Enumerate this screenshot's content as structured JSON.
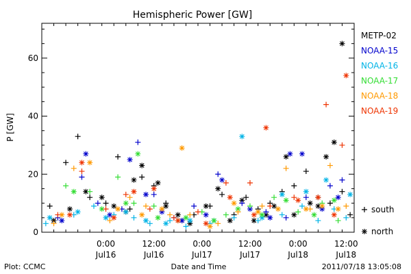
{
  "chart_data": {
    "type": "scatter",
    "title": "Hemispheric Power [GW]",
    "ylabel": "P [GW]",
    "xlabel": "Date and Time",
    "ylim": [
      0,
      72
    ],
    "yticks": [
      0,
      20,
      40,
      60
    ],
    "xlim": [
      "2011-07-15 08:00",
      "2011-07-18 14:00"
    ],
    "xticks": [
      {
        "top": "0:00",
        "bottom": "Jul16",
        "t": "2011-07-16 00:00"
      },
      {
        "top": "12:00",
        "bottom": "Jul16",
        "t": "2011-07-16 12:00"
      },
      {
        "top": "0:00",
        "bottom": "Jul17",
        "t": "2011-07-17 00:00"
      },
      {
        "top": "12:00",
        "bottom": "Jul17",
        "t": "2011-07-17 12:00"
      },
      {
        "top": "0:00",
        "bottom": "Jul18",
        "t": "2011-07-18 00:00"
      },
      {
        "top": "12:00",
        "bottom": "Jul18",
        "t": "2011-07-18 12:00"
      }
    ],
    "marker_key": [
      {
        "marker": "+",
        "label": "south"
      },
      {
        "marker": "*",
        "label": "north"
      }
    ],
    "footer_left": "Plot: CCMC",
    "footer_right": "2011/07/18 13:05:08",
    "series": [
      {
        "name": "METP-02",
        "color": "#000000",
        "south": [
          [
            "2011-07-15 10:00",
            9
          ],
          [
            "2011-07-15 14:00",
            24
          ],
          [
            "2011-07-15 17:00",
            33
          ],
          [
            "2011-07-15 20:00",
            12
          ],
          [
            "2011-07-16 00:00",
            10
          ],
          [
            "2011-07-16 03:00",
            26
          ],
          [
            "2011-07-16 06:00",
            8
          ],
          [
            "2011-07-16 09:00",
            19
          ],
          [
            "2011-07-16 12:00",
            16
          ],
          [
            "2011-07-16 15:00",
            10
          ],
          [
            "2011-07-16 19:00",
            4
          ],
          [
            "2011-07-16 22:00",
            6
          ],
          [
            "2011-07-17 02:00",
            9
          ],
          [
            "2011-07-17 05:00",
            13
          ],
          [
            "2011-07-17 08:00",
            6
          ],
          [
            "2011-07-17 11:00",
            12
          ],
          [
            "2011-07-17 14:00",
            8
          ],
          [
            "2011-07-17 17:00",
            10
          ],
          [
            "2011-07-17 20:00",
            14
          ],
          [
            "2011-07-17 23:00",
            16
          ],
          [
            "2011-07-18 02:00",
            21
          ],
          [
            "2011-07-18 05:00",
            12
          ],
          [
            "2011-07-18 08:00",
            10
          ],
          [
            "2011-07-18 11:00",
            14
          ],
          [
            "2011-07-18 13:00",
            6
          ]
        ],
        "north": [
          [
            "2011-07-15 11:00",
            4
          ],
          [
            "2011-07-15 15:00",
            8
          ],
          [
            "2011-07-15 19:00",
            14
          ],
          [
            "2011-07-15 23:00",
            12
          ],
          [
            "2011-07-16 02:00",
            9
          ],
          [
            "2011-07-16 05:00",
            7
          ],
          [
            "2011-07-16 07:00",
            18
          ],
          [
            "2011-07-16 09:00",
            23
          ],
          [
            "2011-07-16 13:00",
            17
          ],
          [
            "2011-07-16 15:00",
            9
          ],
          [
            "2011-07-16 18:00",
            6
          ],
          [
            "2011-07-16 21:00",
            3
          ],
          [
            "2011-07-17 01:00",
            9
          ],
          [
            "2011-07-17 04:00",
            15
          ],
          [
            "2011-07-17 07:00",
            4
          ],
          [
            "2011-07-17 10:00",
            11
          ],
          [
            "2011-07-17 13:00",
            4
          ],
          [
            "2011-07-17 16:00",
            6
          ],
          [
            "2011-07-17 18:00",
            9
          ],
          [
            "2011-07-17 21:00",
            26
          ],
          [
            "2011-07-17 23:00",
            6
          ],
          [
            "2011-07-18 03:00",
            10
          ],
          [
            "2011-07-18 05:00",
            9
          ],
          [
            "2011-07-18 07:00",
            26
          ],
          [
            "2011-07-18 09:00",
            31
          ],
          [
            "2011-07-18 11:00",
            65
          ]
        ]
      },
      {
        "name": "NOAA-15",
        "color": "#0000cc",
        "south": [
          [
            "2011-07-15 12:00",
            5
          ],
          [
            "2011-07-15 18:00",
            19
          ],
          [
            "2011-07-15 22:00",
            10
          ],
          [
            "2011-07-16 04:00",
            8
          ],
          [
            "2011-07-16 08:00",
            31
          ],
          [
            "2011-07-16 12:00",
            13
          ],
          [
            "2011-07-16 17:00",
            5
          ],
          [
            "2011-07-16 22:00",
            9
          ],
          [
            "2011-07-17 04:00",
            20
          ],
          [
            "2011-07-17 10:00",
            10
          ],
          [
            "2011-07-17 16:00",
            7
          ],
          [
            "2011-07-17 21:00",
            5
          ],
          [
            "2011-07-18 02:00",
            12
          ],
          [
            "2011-07-18 08:00",
            16
          ],
          [
            "2011-07-18 11:00",
            18
          ]
        ],
        "north": [
          [
            "2011-07-15 13:00",
            4
          ],
          [
            "2011-07-15 19:00",
            27
          ],
          [
            "2011-07-16 01:00",
            6
          ],
          [
            "2011-07-16 06:00",
            25
          ],
          [
            "2011-07-16 10:00",
            13
          ],
          [
            "2011-07-16 14:00",
            7
          ],
          [
            "2011-07-16 19:00",
            4
          ],
          [
            "2011-07-17 01:00",
            6
          ],
          [
            "2011-07-17 05:00",
            18
          ],
          [
            "2011-07-17 12:00",
            8
          ],
          [
            "2011-07-17 17:00",
            5
          ],
          [
            "2011-07-17 22:00",
            27
          ],
          [
            "2011-07-18 01:00",
            27
          ],
          [
            "2011-07-18 06:00",
            8
          ],
          [
            "2011-07-18 10:00",
            12
          ]
        ]
      },
      {
        "name": "NOAA-16",
        "color": "#00b3e6",
        "south": [
          [
            "2011-07-15 09:00",
            3
          ],
          [
            "2011-07-15 16:00",
            6
          ],
          [
            "2011-07-15 21:00",
            9
          ],
          [
            "2011-07-16 02:00",
            6
          ],
          [
            "2011-07-16 07:00",
            5
          ],
          [
            "2011-07-16 11:00",
            3
          ],
          [
            "2011-07-16 16:00",
            4
          ],
          [
            "2011-07-16 20:00",
            2
          ],
          [
            "2011-07-17 02:00",
            3
          ],
          [
            "2011-07-17 08:00",
            5
          ],
          [
            "2011-07-17 14:00",
            4
          ],
          [
            "2011-07-17 20:00",
            6
          ],
          [
            "2011-07-18 01:00",
            9
          ],
          [
            "2011-07-18 05:00",
            4
          ],
          [
            "2011-07-18 09:00",
            8
          ],
          [
            "2011-07-18 12:00",
            5
          ]
        ],
        "north": [
          [
            "2011-07-15 10:00",
            5
          ],
          [
            "2011-07-15 17:00",
            7
          ],
          [
            "2011-07-16 00:00",
            5
          ],
          [
            "2011-07-16 05:00",
            7
          ],
          [
            "2011-07-16 10:00",
            4
          ],
          [
            "2011-07-16 15:00",
            3
          ],
          [
            "2011-07-16 21:00",
            4
          ],
          [
            "2011-07-17 03:00",
            4
          ],
          [
            "2011-07-17 10:00",
            33
          ],
          [
            "2011-07-17 15:00",
            5
          ],
          [
            "2011-07-17 20:00",
            13
          ],
          [
            "2011-07-18 02:00",
            14
          ],
          [
            "2011-07-18 07:00",
            18
          ],
          [
            "2011-07-18 13:00",
            13
          ]
        ]
      },
      {
        "name": "NOAA-17",
        "color": "#33dd33",
        "south": [
          [
            "2011-07-15 14:00",
            16
          ],
          [
            "2011-07-15 20:00",
            14
          ],
          [
            "2011-07-16 03:00",
            19
          ],
          [
            "2011-07-16 07:00",
            10
          ],
          [
            "2011-07-16 12:00",
            9
          ],
          [
            "2011-07-16 18:00",
            4
          ],
          [
            "2011-07-17 00:00",
            7
          ],
          [
            "2011-07-17 06:00",
            6
          ],
          [
            "2011-07-17 12:00",
            9
          ],
          [
            "2011-07-17 18:00",
            12
          ],
          [
            "2011-07-18 00:00",
            7
          ],
          [
            "2011-07-18 06:00",
            10
          ],
          [
            "2011-07-18 10:00",
            4
          ]
        ],
        "north": [
          [
            "2011-07-15 16:00",
            14
          ],
          [
            "2011-07-15 23:00",
            8
          ],
          [
            "2011-07-16 05:00",
            10
          ],
          [
            "2011-07-16 08:00",
            27
          ],
          [
            "2011-07-16 13:00",
            5
          ],
          [
            "2011-07-16 20:00",
            5
          ],
          [
            "2011-07-17 03:00",
            4
          ],
          [
            "2011-07-17 09:00",
            8
          ],
          [
            "2011-07-17 15:00",
            6
          ],
          [
            "2011-07-17 21:00",
            11
          ],
          [
            "2011-07-18 04:00",
            6
          ],
          [
            "2011-07-18 09:00",
            11
          ]
        ]
      },
      {
        "name": "NOAA-18",
        "color": "#ff9900",
        "south": [
          [
            "2011-07-15 11:00",
            3
          ],
          [
            "2011-07-15 16:00",
            22
          ],
          [
            "2011-07-16 01:00",
            4
          ],
          [
            "2011-07-16 06:00",
            12
          ],
          [
            "2011-07-16 10:00",
            9
          ],
          [
            "2011-07-16 16:00",
            6
          ],
          [
            "2011-07-16 21:00",
            6
          ],
          [
            "2011-07-17 04:00",
            3
          ],
          [
            "2011-07-17 09:00",
            7
          ],
          [
            "2011-07-17 15:00",
            9
          ],
          [
            "2011-07-17 21:00",
            22
          ],
          [
            "2011-07-18 03:00",
            8
          ],
          [
            "2011-07-18 08:00",
            23
          ],
          [
            "2011-07-18 12:00",
            9
          ]
        ],
        "north": [
          [
            "2011-07-15 13:00",
            6
          ],
          [
            "2011-07-15 20:00",
            24
          ],
          [
            "2011-07-16 03:00",
            8
          ],
          [
            "2011-07-16 09:00",
            6
          ],
          [
            "2011-07-16 14:00",
            8
          ],
          [
            "2011-07-16 19:00",
            29
          ],
          [
            "2011-07-17 02:00",
            2
          ],
          [
            "2011-07-17 08:00",
            10
          ],
          [
            "2011-07-17 14:00",
            7
          ],
          [
            "2011-07-17 19:00",
            8
          ],
          [
            "2011-07-18 02:00",
            8
          ],
          [
            "2011-07-18 06:00",
            9
          ],
          [
            "2011-07-18 10:00",
            8
          ]
        ]
      },
      {
        "name": "NOAA-19",
        "color": "#ee3300",
        "south": [
          [
            "2011-07-15 12:00",
            6
          ],
          [
            "2011-07-15 18:00",
            21
          ],
          [
            "2011-07-16 00:00",
            8
          ],
          [
            "2011-07-16 05:00",
            13
          ],
          [
            "2011-07-16 11:00",
            8
          ],
          [
            "2011-07-16 17:00",
            5
          ],
          [
            "2011-07-16 23:00",
            7
          ],
          [
            "2011-07-17 06:00",
            17
          ],
          [
            "2011-07-17 12:00",
            17
          ],
          [
            "2011-07-17 17:00",
            9
          ],
          [
            "2011-07-17 23:00",
            12
          ],
          [
            "2011-07-18 07:00",
            44
          ],
          [
            "2011-07-18 11:00",
            30
          ]
        ],
        "north": [
          [
            "2011-07-15 15:00",
            6
          ],
          [
            "2011-07-15 18:00",
            24
          ],
          [
            "2011-07-16 02:00",
            5
          ],
          [
            "2011-07-16 07:00",
            14
          ],
          [
            "2011-07-16 12:00",
            15
          ],
          [
            "2011-07-16 18:00",
            4
          ],
          [
            "2011-07-17 01:00",
            3
          ],
          [
            "2011-07-17 07:00",
            12
          ],
          [
            "2011-07-17 13:00",
            6
          ],
          [
            "2011-07-17 16:00",
            36
          ],
          [
            "2011-07-18 00:00",
            11
          ],
          [
            "2011-07-18 05:00",
            12
          ],
          [
            "2011-07-18 09:00",
            6
          ],
          [
            "2011-07-18 12:00",
            54
          ]
        ]
      }
    ]
  }
}
